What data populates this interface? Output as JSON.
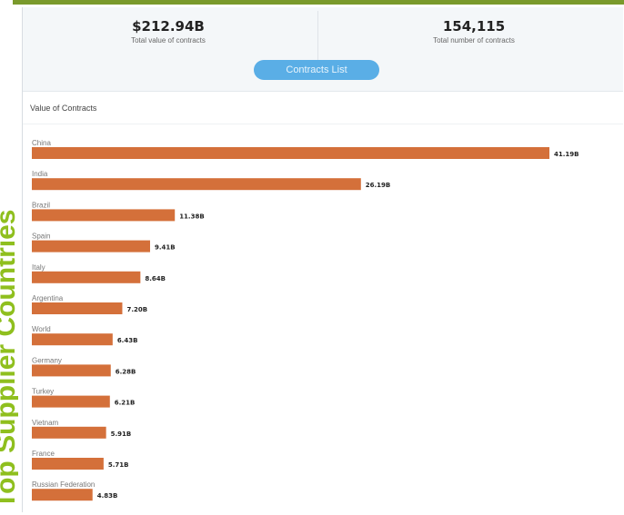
{
  "side_title": "Top Supplier Countries",
  "kpis": {
    "total_value": "$212.94B",
    "total_value_label": "Total value of contracts",
    "total_count": "154,115",
    "total_count_label": "Total number of contracts"
  },
  "button_label": "Contracts List",
  "section_label": "Value of Contracts",
  "colors": {
    "bar": "#d4703a",
    "accent_green": "#8fbf1e",
    "button": "#5aaee6"
  },
  "chart_data": {
    "type": "bar",
    "orientation": "horizontal",
    "categories": [
      "China",
      "India",
      "Brazil",
      "Spain",
      "Italy",
      "Argentina",
      "World",
      "Germany",
      "Turkey",
      "Vietnam",
      "France",
      "Russian Federation"
    ],
    "values": [
      41.19,
      26.19,
      11.38,
      9.41,
      8.64,
      7.2,
      6.43,
      6.28,
      6.21,
      5.91,
      5.71,
      4.83
    ],
    "value_labels": [
      "41.19B",
      "26.19B",
      "11.38B",
      "9.41B",
      "8.64B",
      "7.20B",
      "6.43B",
      "6.28B",
      "6.21B",
      "5.91B",
      "5.71B",
      "4.83B"
    ],
    "xlim": [
      0,
      43
    ],
    "grid": false,
    "legend": "none"
  }
}
